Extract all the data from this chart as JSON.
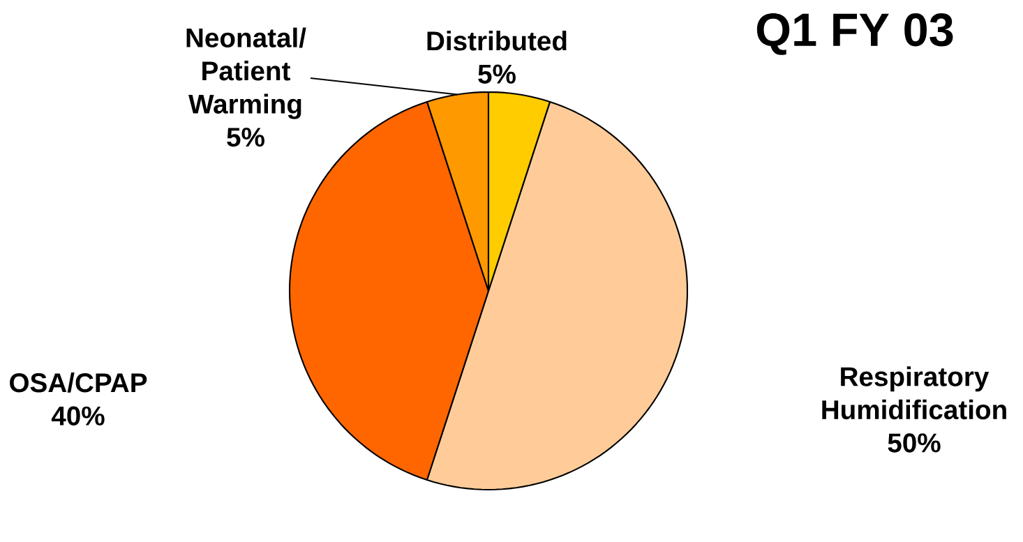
{
  "chart_data": {
    "type": "pie",
    "title": "Q1 FY 03",
    "categories": [
      "Respiratory Humidification",
      "OSA/CPAP",
      "Neonatal/ Patient Warming",
      "Distributed"
    ],
    "values": [
      50,
      40,
      5,
      5
    ],
    "value_labels": [
      "50%",
      "40%",
      "5%",
      "5%"
    ],
    "colors": [
      "#ffcc99",
      "#ff6600",
      "#ff9900",
      "#ffcc00"
    ]
  }
}
